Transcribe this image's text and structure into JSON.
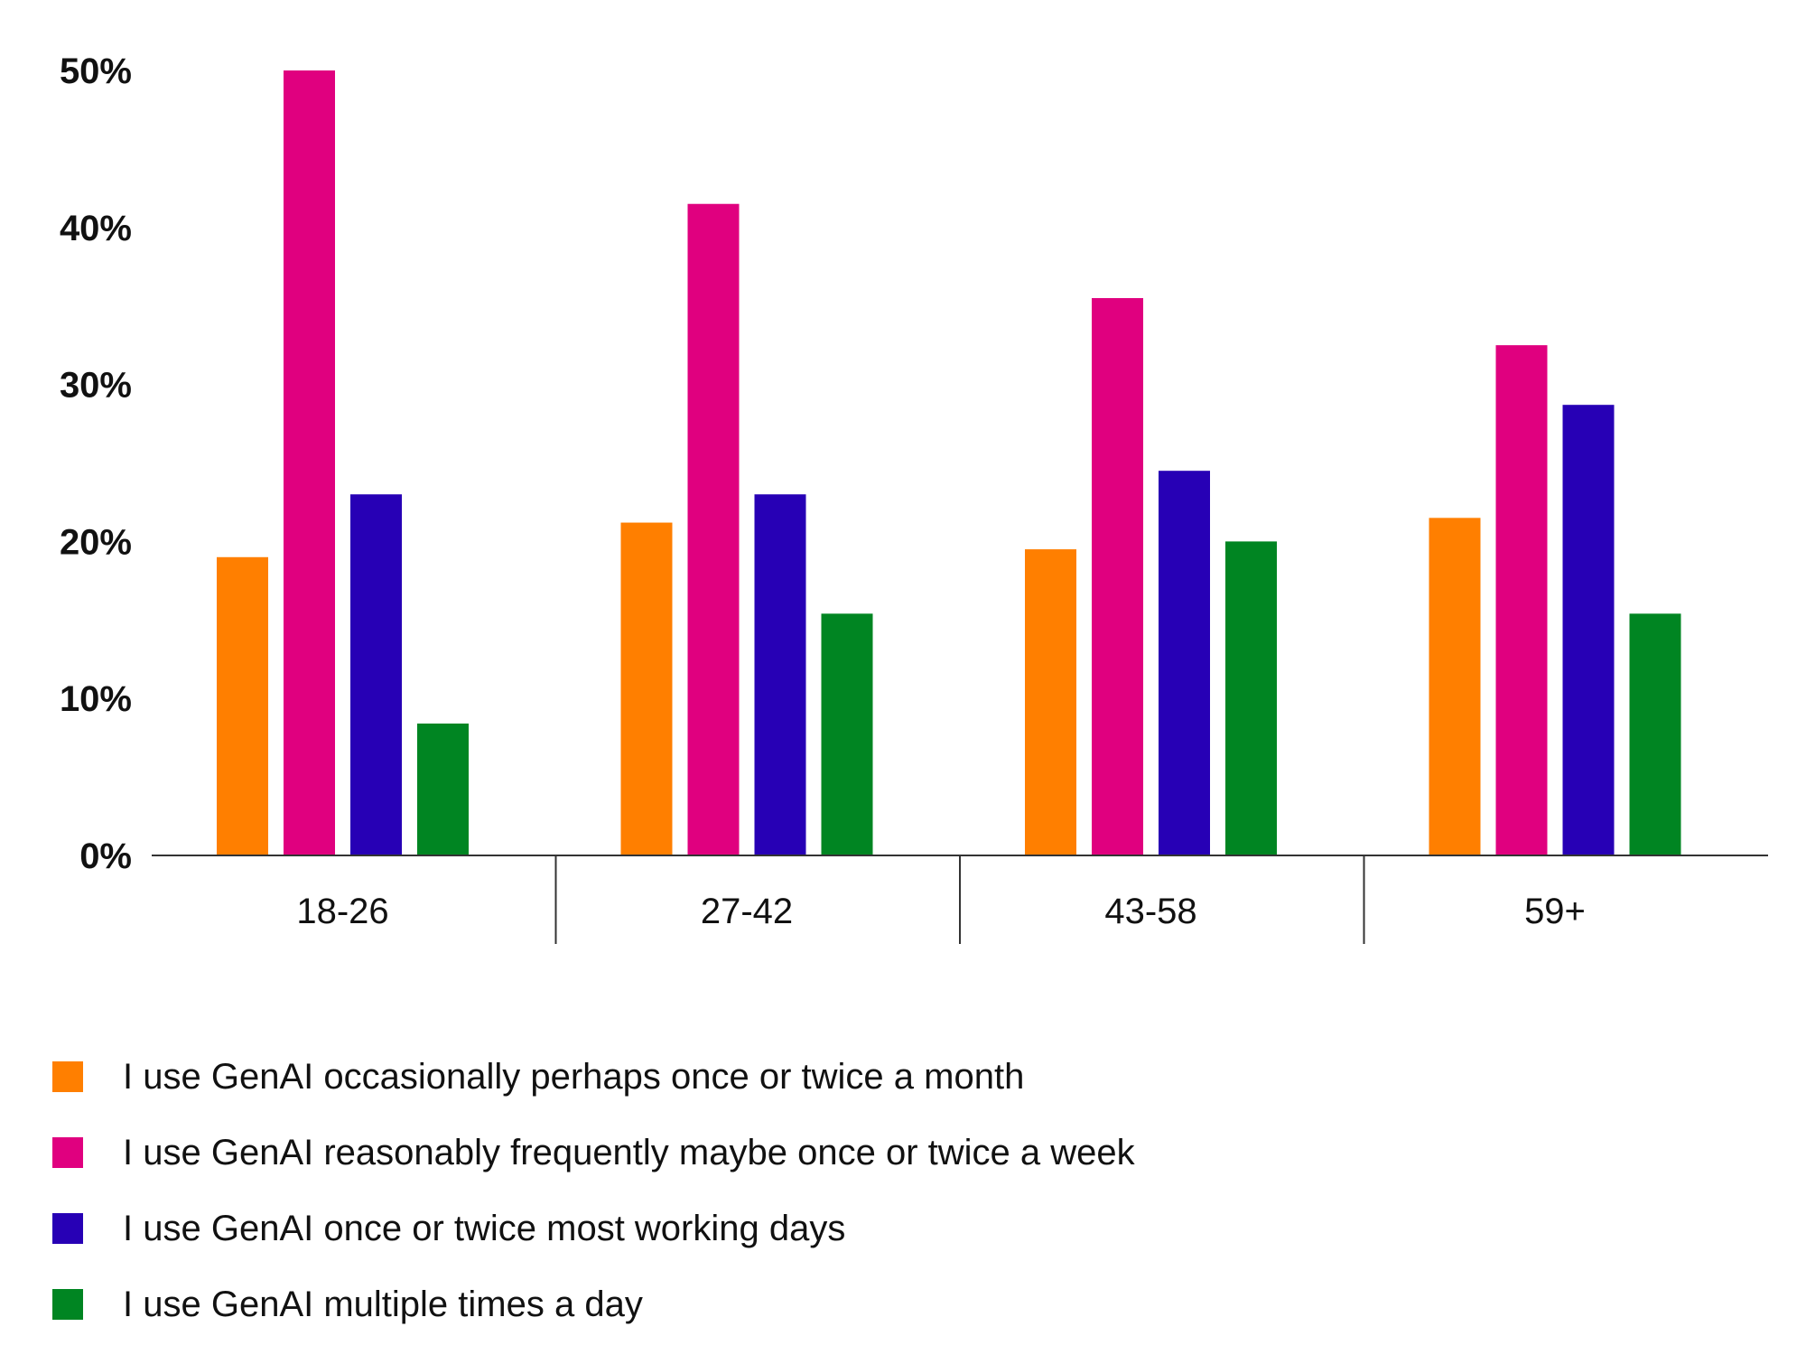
{
  "chart_data": {
    "type": "bar",
    "categories": [
      "18-26",
      "27-42",
      "43-58",
      "59+"
    ],
    "series": [
      {
        "name": "I use GenAI occasionally perhaps once or twice a month",
        "color": "#ff7f00",
        "values": [
          19,
          21.2,
          19.5,
          21.5
        ]
      },
      {
        "name": "I use GenAI reasonably frequently maybe once or twice a week",
        "color": "#e0007f",
        "values": [
          50,
          41.5,
          35.5,
          32.5
        ]
      },
      {
        "name": "I use GenAI once or twice most working days",
        "color": "#2700b5",
        "values": [
          23,
          23,
          24.5,
          28.7
        ]
      },
      {
        "name": "I use GenAI multiple times a day",
        "color": "#008522",
        "values": [
          8.4,
          15.4,
          20,
          15.4
        ]
      }
    ],
    "yticks": [
      "0%",
      "10%",
      "20%",
      "30%",
      "40%",
      "50%"
    ],
    "ylim": [
      0,
      50
    ],
    "grid": false,
    "legend_position": "bottom-left"
  }
}
